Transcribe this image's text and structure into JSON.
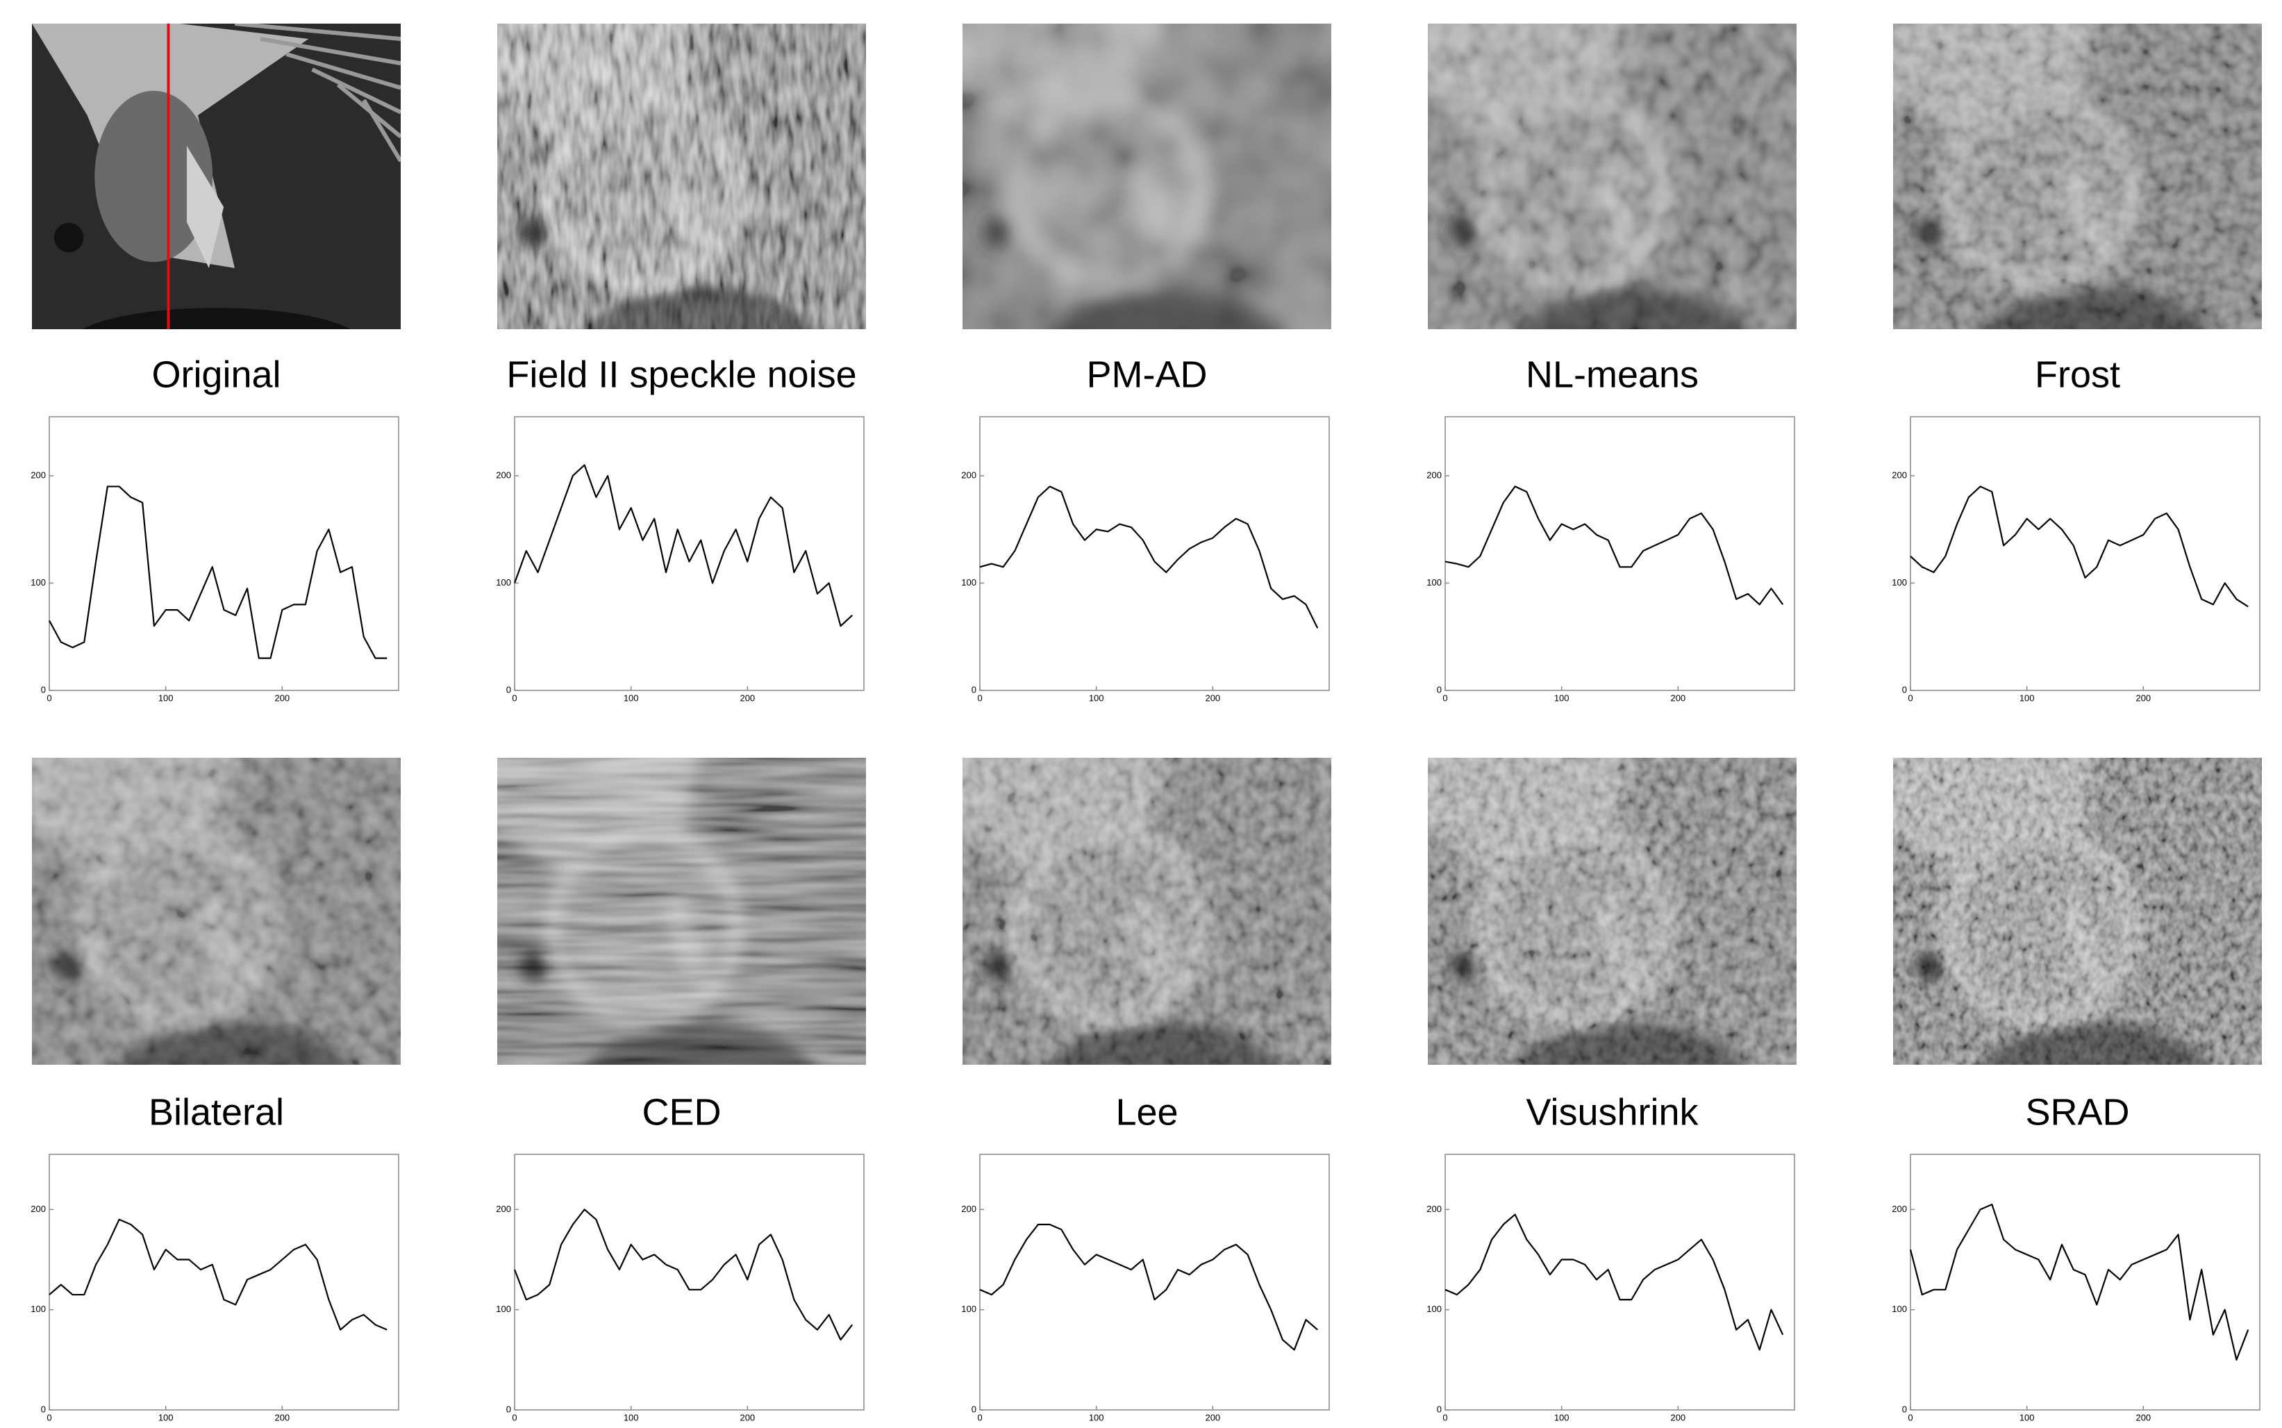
{
  "chart_data": [
    {
      "type": "line",
      "title": "Original",
      "color": "#000000",
      "xlim": [
        0,
        300
      ],
      "ylim": [
        0,
        255
      ],
      "xticks": [
        0,
        100,
        200
      ],
      "yticks": [
        0,
        100,
        200
      ],
      "x": [
        0,
        10,
        20,
        30,
        40,
        50,
        60,
        70,
        80,
        90,
        100,
        110,
        120,
        130,
        140,
        150,
        160,
        170,
        180,
        190,
        200,
        210,
        220,
        230,
        240,
        250,
        260,
        270,
        280,
        290
      ],
      "values": [
        65,
        45,
        40,
        45,
        120,
        190,
        190,
        180,
        175,
        60,
        75,
        75,
        65,
        90,
        115,
        75,
        70,
        95,
        30,
        30,
        75,
        80,
        80,
        130,
        150,
        110,
        115,
        50,
        30,
        30
      ]
    },
    {
      "type": "line",
      "title": "Field II speckle noise",
      "color": "#000000",
      "xlim": [
        0,
        300
      ],
      "ylim": [
        0,
        255
      ],
      "xticks": [
        0,
        100,
        200
      ],
      "yticks": [
        0,
        100,
        200
      ],
      "x": [
        0,
        10,
        20,
        30,
        40,
        50,
        60,
        70,
        80,
        90,
        100,
        110,
        120,
        130,
        140,
        150,
        160,
        170,
        180,
        190,
        200,
        210,
        220,
        230,
        240,
        250,
        260,
        270,
        280,
        290
      ],
      "values": [
        100,
        130,
        110,
        140,
        170,
        200,
        210,
        180,
        200,
        150,
        170,
        140,
        160,
        110,
        150,
        120,
        140,
        100,
        130,
        150,
        120,
        160,
        180,
        170,
        110,
        130,
        90,
        100,
        60,
        70
      ]
    },
    {
      "type": "line",
      "title": "PM-AD",
      "color": "#000000",
      "xlim": [
        0,
        300
      ],
      "ylim": [
        0,
        255
      ],
      "xticks": [
        0,
        100,
        200
      ],
      "yticks": [
        0,
        100,
        200
      ],
      "x": [
        0,
        10,
        20,
        30,
        40,
        50,
        60,
        70,
        80,
        90,
        100,
        110,
        120,
        130,
        140,
        150,
        160,
        170,
        180,
        190,
        200,
        210,
        220,
        230,
        240,
        250,
        260,
        270,
        280,
        290
      ],
      "values": [
        115,
        118,
        115,
        130,
        155,
        180,
        190,
        185,
        155,
        140,
        150,
        148,
        155,
        152,
        140,
        120,
        110,
        122,
        132,
        138,
        142,
        152,
        160,
        155,
        130,
        95,
        85,
        88,
        80,
        58
      ]
    },
    {
      "type": "line",
      "title": "NL-means",
      "color": "#000000",
      "xlim": [
        0,
        300
      ],
      "ylim": [
        0,
        255
      ],
      "xticks": [
        0,
        100,
        200
      ],
      "yticks": [
        0,
        100,
        200
      ],
      "x": [
        0,
        10,
        20,
        30,
        40,
        50,
        60,
        70,
        80,
        90,
        100,
        110,
        120,
        130,
        140,
        150,
        160,
        170,
        180,
        190,
        200,
        210,
        220,
        230,
        240,
        250,
        260,
        270,
        280,
        290
      ],
      "values": [
        120,
        118,
        115,
        125,
        150,
        175,
        190,
        185,
        160,
        140,
        155,
        150,
        155,
        145,
        140,
        115,
        115,
        130,
        135,
        140,
        145,
        160,
        165,
        150,
        120,
        85,
        90,
        80,
        95,
        80
      ]
    },
    {
      "type": "line",
      "title": "Frost",
      "color": "#000000",
      "xlim": [
        0,
        300
      ],
      "ylim": [
        0,
        255
      ],
      "xticks": [
        0,
        100,
        200
      ],
      "yticks": [
        0,
        100,
        200
      ],
      "x": [
        0,
        10,
        20,
        30,
        40,
        50,
        60,
        70,
        80,
        90,
        100,
        110,
        120,
        130,
        140,
        150,
        160,
        170,
        180,
        190,
        200,
        210,
        220,
        230,
        240,
        250,
        260,
        270,
        280,
        290
      ],
      "values": [
        125,
        115,
        110,
        125,
        155,
        180,
        190,
        185,
        135,
        145,
        160,
        150,
        160,
        150,
        135,
        105,
        115,
        140,
        135,
        140,
        145,
        160,
        165,
        150,
        115,
        85,
        80,
        100,
        85,
        78
      ]
    },
    {
      "type": "line",
      "title": "Bilateral",
      "color": "#000000",
      "xlim": [
        0,
        300
      ],
      "ylim": [
        0,
        255
      ],
      "xticks": [
        0,
        100,
        200
      ],
      "yticks": [
        0,
        100,
        200
      ],
      "x": [
        0,
        10,
        20,
        30,
        40,
        50,
        60,
        70,
        80,
        90,
        100,
        110,
        120,
        130,
        140,
        150,
        160,
        170,
        180,
        190,
        200,
        210,
        220,
        230,
        240,
        250,
        260,
        270,
        280,
        290
      ],
      "values": [
        115,
        125,
        115,
        115,
        145,
        165,
        190,
        185,
        175,
        140,
        160,
        150,
        150,
        140,
        145,
        110,
        105,
        130,
        135,
        140,
        150,
        160,
        165,
        150,
        110,
        80,
        90,
        95,
        85,
        80
      ]
    },
    {
      "type": "line",
      "title": "CED",
      "color": "#000000",
      "xlim": [
        0,
        300
      ],
      "ylim": [
        0,
        255
      ],
      "xticks": [
        0,
        100,
        200
      ],
      "yticks": [
        0,
        100,
        200
      ],
      "x": [
        0,
        10,
        20,
        30,
        40,
        50,
        60,
        70,
        80,
        90,
        100,
        110,
        120,
        130,
        140,
        150,
        160,
        170,
        180,
        190,
        200,
        210,
        220,
        230,
        240,
        250,
        260,
        270,
        280,
        290
      ],
      "values": [
        140,
        110,
        115,
        125,
        165,
        185,
        200,
        190,
        160,
        140,
        165,
        150,
        155,
        145,
        140,
        120,
        120,
        130,
        145,
        155,
        130,
        165,
        175,
        150,
        110,
        90,
        80,
        95,
        70,
        85
      ]
    },
    {
      "type": "line",
      "title": "Lee",
      "color": "#000000",
      "xlim": [
        0,
        300
      ],
      "ylim": [
        0,
        255
      ],
      "xticks": [
        0,
        100,
        200
      ],
      "yticks": [
        0,
        100,
        200
      ],
      "x": [
        0,
        10,
        20,
        30,
        40,
        50,
        60,
        70,
        80,
        90,
        100,
        110,
        120,
        130,
        140,
        150,
        160,
        170,
        180,
        190,
        200,
        210,
        220,
        230,
        240,
        250,
        260,
        270,
        280,
        290
      ],
      "values": [
        120,
        115,
        125,
        150,
        170,
        185,
        185,
        180,
        160,
        145,
        155,
        150,
        145,
        140,
        150,
        110,
        120,
        140,
        135,
        145,
        150,
        160,
        165,
        155,
        125,
        100,
        70,
        60,
        90,
        80
      ]
    },
    {
      "type": "line",
      "title": "Visushrink",
      "color": "#000000",
      "xlim": [
        0,
        300
      ],
      "ylim": [
        0,
        255
      ],
      "xticks": [
        0,
        100,
        200
      ],
      "yticks": [
        0,
        100,
        200
      ],
      "x": [
        0,
        10,
        20,
        30,
        40,
        50,
        60,
        70,
        80,
        90,
        100,
        110,
        120,
        130,
        140,
        150,
        160,
        170,
        180,
        190,
        200,
        210,
        220,
        230,
        240,
        250,
        260,
        270,
        280,
        290
      ],
      "values": [
        120,
        115,
        125,
        140,
        170,
        185,
        195,
        170,
        155,
        135,
        150,
        150,
        145,
        130,
        140,
        110,
        110,
        130,
        140,
        145,
        150,
        160,
        170,
        150,
        120,
        80,
        90,
        60,
        100,
        75
      ]
    },
    {
      "type": "line",
      "title": "SRAD",
      "color": "#000000",
      "xlim": [
        0,
        300
      ],
      "ylim": [
        0,
        255
      ],
      "xticks": [
        0,
        100,
        200
      ],
      "yticks": [
        0,
        100,
        200
      ],
      "x": [
        0,
        10,
        20,
        30,
        40,
        50,
        60,
        70,
        80,
        90,
        100,
        110,
        120,
        130,
        140,
        150,
        160,
        170,
        180,
        190,
        200,
        210,
        220,
        230,
        240,
        250,
        260,
        270,
        280,
        290
      ],
      "values": [
        160,
        115,
        120,
        120,
        160,
        180,
        200,
        205,
        170,
        160,
        155,
        150,
        130,
        165,
        140,
        135,
        105,
        140,
        130,
        145,
        150,
        155,
        160,
        175,
        90,
        140,
        75,
        100,
        50,
        80
      ]
    }
  ]
}
